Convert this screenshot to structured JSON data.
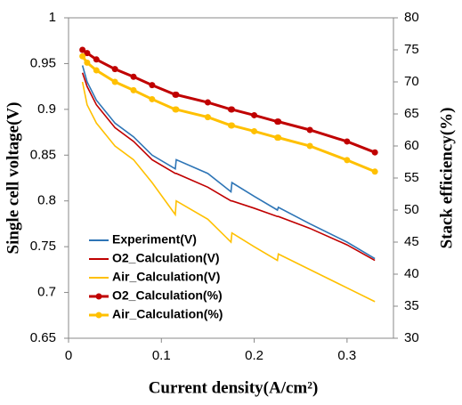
{
  "chart_data": {
    "type": "line",
    "xlabel": "Current density(A/cm²)",
    "ylabel": "Single cell voltage(V)",
    "y2label": "Stack efficiency(%)",
    "x": [
      0.015,
      0.02,
      0.03,
      0.05,
      0.07,
      0.09,
      0.115,
      0.116,
      0.15,
      0.175,
      0.176,
      0.2,
      0.225,
      0.226,
      0.26,
      0.3,
      0.33
    ],
    "xlim": [
      0,
      0.35
    ],
    "xticks": [
      0,
      0.1,
      0.2,
      0.3
    ],
    "ylim": [
      0.65,
      1
    ],
    "yticks": [
      0.65,
      0.7,
      0.75,
      0.8,
      0.85,
      0.9,
      0.95,
      1
    ],
    "y2lim": [
      30,
      80
    ],
    "y2ticks": [
      30,
      35,
      40,
      45,
      50,
      55,
      60,
      65,
      70,
      75,
      80
    ],
    "grid": false,
    "legend": "lower left",
    "series": [
      {
        "name": "Experiment(V)",
        "color": "#2e75b6",
        "values": [
          0.948,
          0.93,
          0.91,
          0.885,
          0.87,
          0.85,
          0.835,
          0.845,
          0.83,
          0.81,
          0.82,
          0.805,
          0.79,
          0.793,
          0.775,
          0.755,
          0.737
        ]
      },
      {
        "name": "O2_Calculation(V)",
        "color": "#c00000",
        "values": [
          0.94,
          0.925,
          0.905,
          0.88,
          0.865,
          0.845,
          0.83,
          0.83,
          0.815,
          0.8,
          0.8,
          0.792,
          0.783,
          0.783,
          0.77,
          0.752,
          0.735
        ]
      },
      {
        "name": "Air_Calculation(V)",
        "color": "#ffc000",
        "values": [
          0.93,
          0.905,
          0.885,
          0.86,
          0.845,
          0.82,
          0.785,
          0.8,
          0.78,
          0.755,
          0.765,
          0.75,
          0.735,
          0.742,
          0.725,
          0.705,
          0.69
        ]
      },
      {
        "name": "O2_Calculation(%)",
        "color": "#c00000",
        "axis": "y2",
        "marker": true,
        "values": [
          75,
          74.5,
          73.5,
          72,
          70.8,
          69.5,
          68,
          68,
          66.8,
          65.7,
          65.7,
          64.8,
          63.8,
          63.8,
          62.5,
          60.7,
          59
        ]
      },
      {
        "name": "Air_Calculation(%)",
        "color": "#ffc000",
        "axis": "y2",
        "marker": true,
        "values": [
          74,
          73,
          71.8,
          70,
          68.7,
          67.3,
          65.7,
          65.7,
          64.5,
          63.2,
          63.2,
          62.3,
          61.3,
          61.3,
          60,
          57.8,
          56
        ]
      }
    ]
  }
}
